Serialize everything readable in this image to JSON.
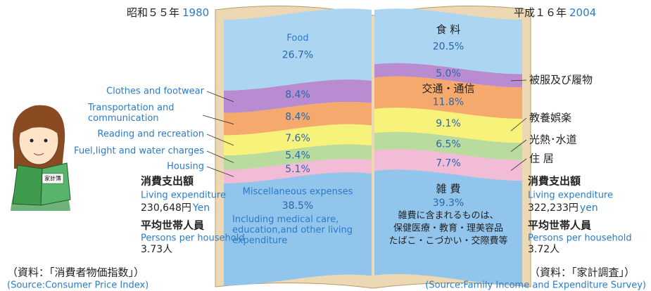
{
  "chart_data": {
    "type": "book",
    "categories": [
      "1980",
      "2004"
    ],
    "eras": [
      "昭和５５年",
      "平成１６年"
    ],
    "ylim": [
      0,
      100
    ],
    "series": [
      {
        "name": "Food",
        "name_ja": "食 料",
        "color": "#abd5f1",
        "values": [
          26.7,
          20.5
        ],
        "value_labels": [
          "26.7%",
          "20.5%"
        ]
      },
      {
        "name": "Clothes and footwear",
        "name_ja": "被服及び履物",
        "color": "#b98bd0",
        "values": [
          8.4,
          5.0
        ],
        "value_labels": [
          "8.4%",
          "5.0%"
        ]
      },
      {
        "name": "Transportation and communication",
        "name_ja": "交通・通信",
        "color": "#f5a96c",
        "values": [
          8.4,
          11.8
        ],
        "value_labels": [
          "8.4%",
          "11.8%"
        ]
      },
      {
        "name": "Reading and recreation",
        "name_ja": "教養娯楽",
        "color": "#f6f27a",
        "values": [
          7.6,
          9.1
        ],
        "value_labels": [
          "7.6%",
          "9.1%"
        ]
      },
      {
        "name": "Fuel,light and water charges",
        "name_ja": "光熱･水道",
        "color": "#b9dc9e",
        "values": [
          5.4,
          6.5
        ],
        "value_labels": [
          "5.4%",
          "6.5%"
        ]
      },
      {
        "name": "Housing",
        "name_ja": "住 居",
        "color": "#f3bcd6",
        "values": [
          5.1,
          7.7
        ],
        "value_labels": [
          "5.1%",
          "7.7%"
        ]
      },
      {
        "name": "Miscellaneous expenses",
        "name_ja": "雑 費",
        "color": "#92c5ec",
        "values": [
          38.5,
          39.3
        ],
        "value_labels": [
          "38.5%",
          "39.3%"
        ]
      }
    ],
    "notes": {
      "misc_en": "Including medical care, education,and other living expenditure",
      "misc_ja": [
        "雑費に含まれるものは、",
        "保健医療・教育・理美容品",
        "たばこ・こづかい・交際費等"
      ]
    },
    "panels": [
      {
        "heading": "消費支出額",
        "heading_en": "Living expenditure",
        "amount": "230,648円",
        "unit": "Yen",
        "persons_heading": "平均世帯人員",
        "persons_en": "Persons per household",
        "persons": "3.73人",
        "source_ja": "（資料：「消費者物価指数」）",
        "source_en": "(Source:Consumer Price Index)"
      },
      {
        "heading": "消費支出額",
        "heading_en": "Living expenditure",
        "amount": "322,233円",
        "unit": "yen",
        "persons_heading": "平均世帯人員",
        "persons_en": "Persons per household",
        "persons": "3.72人",
        "source_ja": "（資料：「家計調査」）",
        "source_en": "(Source:Family Income and Expenditure Survey)"
      }
    ],
    "mascot_book": "家計簿"
  }
}
